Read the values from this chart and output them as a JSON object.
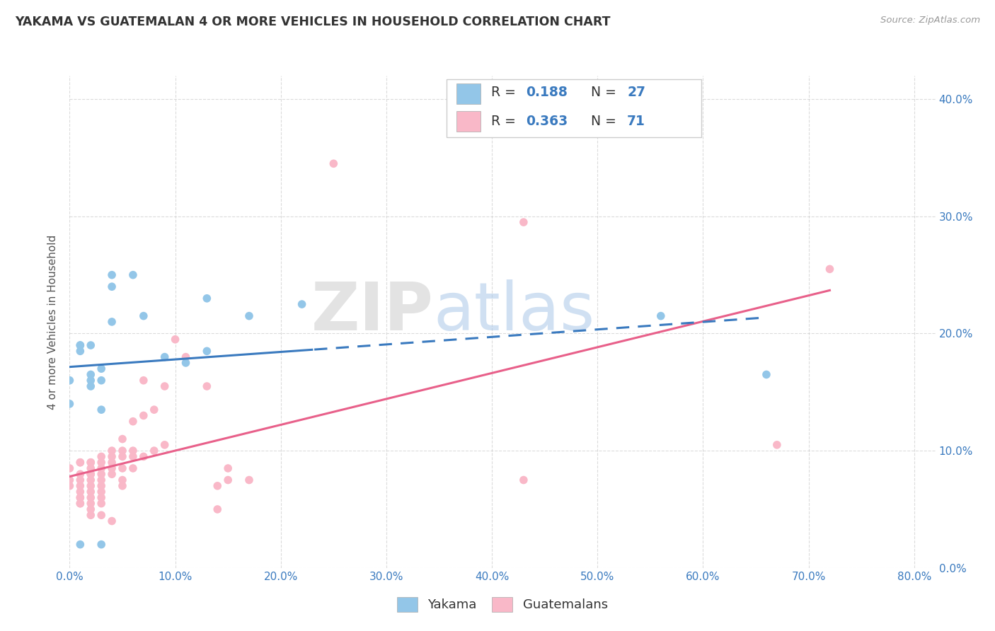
{
  "title": "YAKAMA VS GUATEMALAN 4 OR MORE VEHICLES IN HOUSEHOLD CORRELATION CHART",
  "source": "Source: ZipAtlas.com",
  "ylabel": "4 or more Vehicles in Household",
  "watermark_1": "ZIP",
  "watermark_2": "atlas",
  "watermark_color_1": "#cccccc",
  "watermark_color_2": "#aac8e8",
  "blue_color": "#93c6e8",
  "pink_color": "#f9b8c8",
  "trendline_blue": "#3a7abf",
  "trendline_pink": "#e8608a",
  "legend_blue_r": "0.188",
  "legend_blue_n": "27",
  "legend_pink_r": "0.363",
  "legend_pink_n": "71",
  "blue_points": [
    [
      0.0,
      0.16
    ],
    [
      0.0,
      0.14
    ],
    [
      0.01,
      0.19
    ],
    [
      0.01,
      0.185
    ],
    [
      0.01,
      0.19
    ],
    [
      0.02,
      0.19
    ],
    [
      0.02,
      0.165
    ],
    [
      0.02,
      0.155
    ],
    [
      0.02,
      0.16
    ],
    [
      0.03,
      0.17
    ],
    [
      0.03,
      0.16
    ],
    [
      0.03,
      0.135
    ],
    [
      0.04,
      0.21
    ],
    [
      0.04,
      0.24
    ],
    [
      0.04,
      0.25
    ],
    [
      0.06,
      0.25
    ],
    [
      0.07,
      0.215
    ],
    [
      0.09,
      0.18
    ],
    [
      0.11,
      0.175
    ],
    [
      0.13,
      0.185
    ],
    [
      0.13,
      0.23
    ],
    [
      0.17,
      0.215
    ],
    [
      0.22,
      0.225
    ],
    [
      0.56,
      0.215
    ],
    [
      0.66,
      0.165
    ],
    [
      0.01,
      0.02
    ],
    [
      0.03,
      0.02
    ]
  ],
  "pink_points": [
    [
      0.0,
      0.085
    ],
    [
      0.0,
      0.075
    ],
    [
      0.0,
      0.07
    ],
    [
      0.01,
      0.09
    ],
    [
      0.01,
      0.09
    ],
    [
      0.01,
      0.08
    ],
    [
      0.01,
      0.075
    ],
    [
      0.01,
      0.07
    ],
    [
      0.01,
      0.065
    ],
    [
      0.01,
      0.06
    ],
    [
      0.01,
      0.06
    ],
    [
      0.01,
      0.055
    ],
    [
      0.01,
      0.055
    ],
    [
      0.02,
      0.09
    ],
    [
      0.02,
      0.09
    ],
    [
      0.02,
      0.085
    ],
    [
      0.02,
      0.08
    ],
    [
      0.02,
      0.08
    ],
    [
      0.02,
      0.075
    ],
    [
      0.02,
      0.07
    ],
    [
      0.02,
      0.065
    ],
    [
      0.02,
      0.06
    ],
    [
      0.02,
      0.055
    ],
    [
      0.02,
      0.05
    ],
    [
      0.02,
      0.045
    ],
    [
      0.03,
      0.095
    ],
    [
      0.03,
      0.09
    ],
    [
      0.03,
      0.085
    ],
    [
      0.03,
      0.08
    ],
    [
      0.03,
      0.075
    ],
    [
      0.03,
      0.07
    ],
    [
      0.03,
      0.065
    ],
    [
      0.03,
      0.06
    ],
    [
      0.03,
      0.055
    ],
    [
      0.03,
      0.045
    ],
    [
      0.04,
      0.1
    ],
    [
      0.04,
      0.095
    ],
    [
      0.04,
      0.09
    ],
    [
      0.04,
      0.085
    ],
    [
      0.04,
      0.08
    ],
    [
      0.04,
      0.04
    ],
    [
      0.05,
      0.11
    ],
    [
      0.05,
      0.1
    ],
    [
      0.05,
      0.095
    ],
    [
      0.05,
      0.085
    ],
    [
      0.05,
      0.075
    ],
    [
      0.05,
      0.07
    ],
    [
      0.06,
      0.125
    ],
    [
      0.06,
      0.1
    ],
    [
      0.06,
      0.095
    ],
    [
      0.06,
      0.085
    ],
    [
      0.07,
      0.16
    ],
    [
      0.07,
      0.13
    ],
    [
      0.07,
      0.095
    ],
    [
      0.08,
      0.135
    ],
    [
      0.08,
      0.1
    ],
    [
      0.09,
      0.155
    ],
    [
      0.09,
      0.105
    ],
    [
      0.1,
      0.195
    ],
    [
      0.11,
      0.18
    ],
    [
      0.13,
      0.155
    ],
    [
      0.14,
      0.07
    ],
    [
      0.14,
      0.05
    ],
    [
      0.15,
      0.085
    ],
    [
      0.15,
      0.075
    ],
    [
      0.17,
      0.075
    ],
    [
      0.25,
      0.345
    ],
    [
      0.43,
      0.295
    ],
    [
      0.43,
      0.075
    ],
    [
      0.67,
      0.105
    ],
    [
      0.72,
      0.255
    ]
  ],
  "xlim": [
    0.0,
    0.82
  ],
  "ylim": [
    0.0,
    0.42
  ],
  "x_tick_positions": [
    0.0,
    0.1,
    0.2,
    0.3,
    0.4,
    0.5,
    0.6,
    0.7,
    0.8
  ],
  "y_tick_positions": [
    0.0,
    0.1,
    0.2,
    0.3,
    0.4
  ],
  "right_y_tick_labels": [
    "0.0%",
    "10.0%",
    "20.0%",
    "30.0%",
    "40.0%"
  ],
  "bottom_x_tick_labels": [
    "0.0%",
    "10.0%",
    "20.0%",
    "30.0%",
    "40.0%",
    "50.0%",
    "60.0%",
    "70.0%",
    "80.0%"
  ],
  "background_color": "#ffffff",
  "grid_color": "#cccccc",
  "title_color": "#333333",
  "axis_label_color": "#555555",
  "tick_label_color": "#3a7abf",
  "legend_text_color": "#333333",
  "legend_value_color": "#3a7abf",
  "legend_label_yakama": "Yakama",
  "legend_label_guatemalans": "Guatemalans"
}
